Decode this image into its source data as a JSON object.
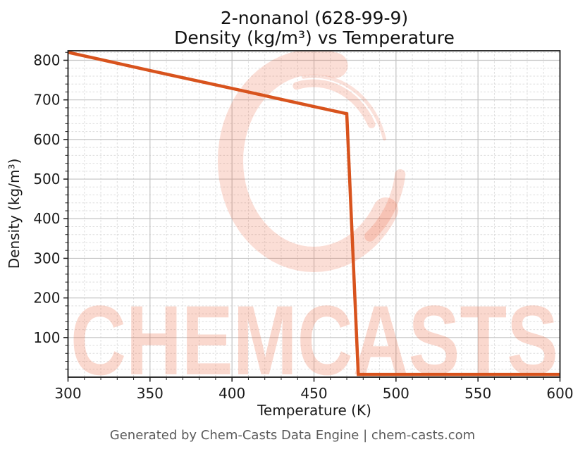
{
  "chart": {
    "title_line1": "2-nonanol (628-99-9)",
    "title_line2": "Density (kg/m³) vs Temperature",
    "xlabel": "Temperature (K)",
    "ylabel": "Density (kg/m³)"
  },
  "chart_data": {
    "type": "line",
    "title": "2-nonanol (628-99-9)",
    "subtitle": "Density (kg/m³) vs Temperature",
    "xlabel": "Temperature (K)",
    "ylabel": "Density (kg/m³)",
    "xlim": [
      300,
      600
    ],
    "ylim": [
      0,
      824
    ],
    "x_ticks": [
      300,
      350,
      400,
      450,
      500,
      550,
      600
    ],
    "y_ticks": [
      100,
      200,
      300,
      400,
      500,
      600,
      700,
      800
    ],
    "x_minor_step": 10,
    "y_minor_step": 20,
    "grid": true,
    "legend": false,
    "series": [
      {
        "name": "Density (kg/m³)",
        "color": "#d8531d",
        "x": [
          300,
          350,
          400,
          450,
          470,
          477,
          500,
          550,
          600
        ],
        "y": [
          820,
          774,
          729,
          683,
          665,
          7,
          7,
          7,
          7
        ]
      }
    ]
  },
  "watermark": {
    "text": "CHEMCASTS",
    "logo": "chemcasts-c-swirl-logo",
    "color": "#e95a32"
  },
  "footer": {
    "text": "Generated by Chem-Casts Data Engine | chem-casts.com"
  },
  "colors": {
    "line": "#d8531d",
    "spine": "#1c1c1c",
    "grid_major": "#c3c3c3",
    "grid_minor": "#dddddd",
    "tick_text": "#1a1a1a",
    "footer_text": "#5a5a5a"
  }
}
